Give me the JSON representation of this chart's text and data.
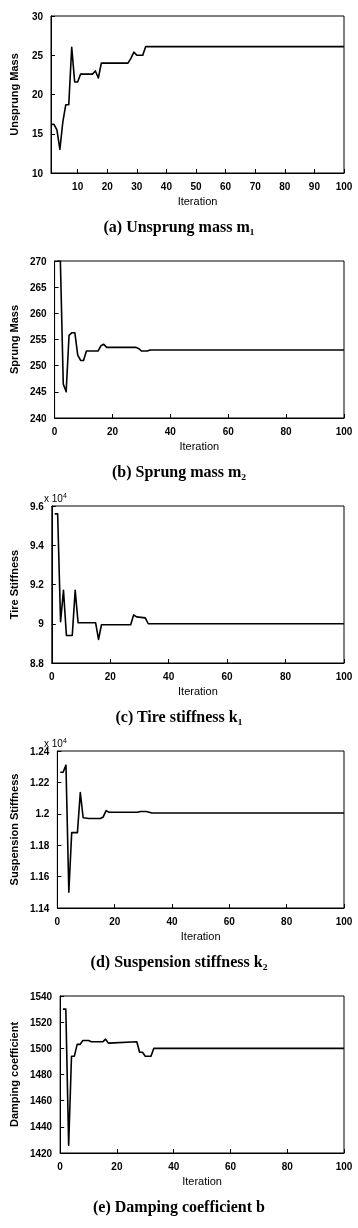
{
  "chart_data": [
    {
      "type": "line",
      "title": "(a) Unsprung mass m₁",
      "xlabel": "Iteration",
      "ylabel": "Unsprung Mass",
      "xlim": [
        1,
        100
      ],
      "xticks": [
        10,
        20,
        30,
        40,
        50,
        60,
        70,
        80,
        90,
        100
      ],
      "ylim": [
        10,
        30
      ],
      "yticks": [
        10,
        15,
        20,
        25,
        30
      ],
      "x": [
        1,
        2,
        3,
        4,
        5,
        6,
        7,
        8,
        9,
        10,
        11,
        15,
        16,
        17,
        18,
        27,
        28,
        29,
        30,
        32,
        33,
        100
      ],
      "series": [
        {
          "color": "#000000",
          "values": [
            16.2,
            16.2,
            15.5,
            13,
            16.5,
            18.7,
            18.7,
            26,
            21.6,
            21.6,
            22.6,
            22.6,
            23,
            22.1,
            24,
            24,
            24.6,
            25.4,
            25,
            25,
            26.1,
            26.1
          ]
        }
      ]
    },
    {
      "type": "line",
      "title": "(b) Sprung mass m₂",
      "xlabel": "Iteration",
      "ylabel": "Sprung Mass",
      "xlim": [
        0,
        100
      ],
      "xticks": [
        0,
        20,
        40,
        60,
        80,
        100
      ],
      "ylim": [
        240,
        270
      ],
      "yticks": [
        240,
        245,
        250,
        255,
        260,
        265,
        270
      ],
      "x": [
        1,
        2,
        3,
        4,
        5,
        6,
        7,
        8,
        9,
        10,
        11,
        15,
        16,
        17,
        18,
        28,
        29,
        30,
        32,
        33,
        100
      ],
      "series": [
        {
          "color": "#000000",
          "values": [
            270,
            270,
            246.5,
            245,
            255.8,
            256.3,
            256.3,
            252,
            251,
            251,
            252.8,
            252.8,
            253.8,
            254.1,
            253.5,
            253.5,
            253.3,
            252.8,
            252.8,
            253,
            253
          ]
        }
      ]
    },
    {
      "type": "line",
      "title": "(c) Tire stiffness k₁",
      "xlabel": "Iteration",
      "ylabel": "Tire Stiffness",
      "annotations": [
        "x 10$^{4}$"
      ],
      "xlim": [
        0,
        100
      ],
      "xticks": [
        0,
        20,
        40,
        60,
        80,
        100
      ],
      "ylim": [
        8.8,
        9.6
      ],
      "yticks": [
        8.8,
        9,
        9.2,
        9.4,
        9.6
      ],
      "x": [
        1,
        2,
        3,
        4,
        5,
        7,
        8,
        9,
        15,
        16,
        17,
        27,
        28,
        29,
        32,
        33,
        100
      ],
      "series": [
        {
          "color": "#000000",
          "values": [
            9.56,
            9.56,
            9.01,
            9.17,
            8.94,
            8.94,
            9.17,
            9.005,
            9.005,
            8.92,
            8.995,
            8.995,
            9.045,
            9.035,
            9.03,
            9.0,
            9.0
          ]
        }
      ]
    },
    {
      "type": "line",
      "title": "(d) Suspension stiffness k₂",
      "xlabel": "Iteration",
      "ylabel": "Suspension Stiffness",
      "annotations": [
        "x 10$^{4}$"
      ],
      "xlim": [
        0,
        100
      ],
      "xticks": [
        0,
        20,
        40,
        60,
        80,
        100
      ],
      "ylim": [
        1.14,
        1.24
      ],
      "yticks": [
        1.14,
        1.16,
        1.18,
        1.2,
        1.22,
        1.24
      ],
      "x": [
        1,
        2,
        3,
        4,
        5,
        7,
        8,
        9,
        11,
        15,
        16,
        17,
        18,
        28,
        29,
        31,
        33,
        100
      ],
      "series": [
        {
          "color": "#000000",
          "values": [
            1.2265,
            1.2265,
            1.231,
            1.15,
            1.188,
            1.188,
            1.2135,
            1.1975,
            1.197,
            1.197,
            1.198,
            1.202,
            1.201,
            1.201,
            1.2015,
            1.2015,
            1.2005,
            1.2005
          ]
        }
      ]
    },
    {
      "type": "line",
      "title": "(e) Damping coefficient b",
      "xlabel": "Iteration",
      "ylabel": "Damping coefficient",
      "xlim": [
        0,
        100
      ],
      "xticks": [
        0,
        20,
        40,
        60,
        80,
        100
      ],
      "ylim": [
        1420,
        1540
      ],
      "yticks": [
        1420,
        1440,
        1460,
        1480,
        1500,
        1520,
        1540
      ],
      "x": [
        1,
        2,
        3,
        4,
        5,
        6,
        7,
        8,
        10,
        11,
        15,
        16,
        17,
        27,
        28,
        29,
        30,
        32,
        33,
        100
      ],
      "series": [
        {
          "color": "#000000",
          "values": [
            1530,
            1530,
            1426,
            1494,
            1494,
            1503,
            1503,
            1506,
            1506,
            1505,
            1505,
            1507,
            1504,
            1505,
            1497,
            1497,
            1494,
            1494,
            1500,
            1500
          ]
        }
      ]
    }
  ]
}
